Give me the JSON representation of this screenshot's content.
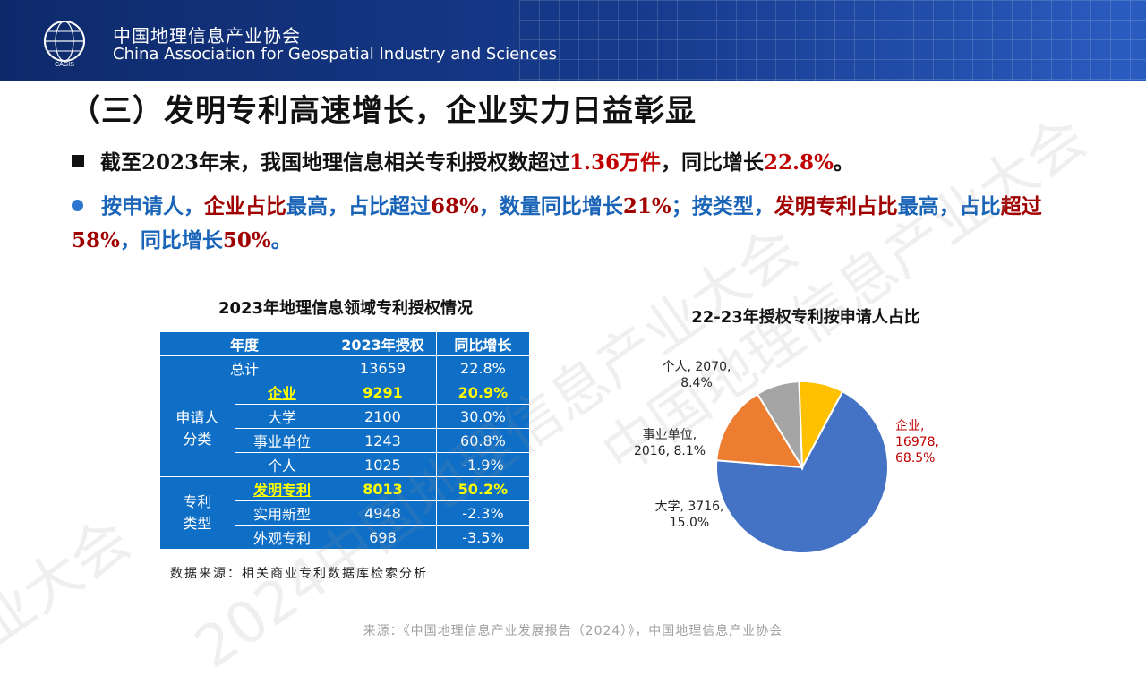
{
  "header": {
    "org_cn": "中国地理信息产业协会",
    "org_en": "China Association for Geospatial Industry and Sciences",
    "logo_text": "CAGIS"
  },
  "title": "（三）发明专利高速增长，企业实力日益彰显",
  "bullet1": {
    "p1": "截至2023年末，我国地理信息相关专利授权数超过",
    "v1": "1.36万件",
    "p2": "，同比增长",
    "v2": "22.8%",
    "p3": "。"
  },
  "bullet2": {
    "p1": "按申请人，",
    "h1": "企业占比",
    "p2": "最高，占比超过",
    "v1": "68%",
    "p3": "，数量同比增长",
    "v2": "21%",
    "p4": "；按类型，",
    "h2": "发明专利占比",
    "p5": "最高，占比",
    "h3": "超过",
    "v3": "58%",
    "p6": "，同比增长",
    "v4": "50%",
    "p7": "。"
  },
  "table": {
    "title": "2023年地理信息领域专利授权情况",
    "headers": [
      "年度",
      "2023年授权",
      "同比增长"
    ],
    "total": {
      "label": "总计",
      "value": "13659",
      "growth": "22.8%"
    },
    "group1": "申请人\n分类",
    "group2": "专利\n类型",
    "rows": [
      {
        "label": "企业",
        "value": "9291",
        "growth": "20.9%"
      },
      {
        "label": "大学",
        "value": "2100",
        "growth": "30.0%"
      },
      {
        "label": "事业单位",
        "value": "1243",
        "growth": "60.8%"
      },
      {
        "label": "个人",
        "value": "1025",
        "growth": "-1.9%"
      },
      {
        "label": "发明专利",
        "value": "8013",
        "growth": "50.2%"
      },
      {
        "label": "实用新型",
        "value": "4948",
        "growth": "-2.3%"
      },
      {
        "label": "外观专利",
        "value": "698",
        "growth": "-3.5%"
      }
    ],
    "source": "数据来源：相关商业专利数据库检索分析"
  },
  "chart_data": {
    "type": "pie",
    "title": "22-23年授权专利按申请人占比",
    "slices": [
      {
        "name": "企业",
        "value": 16978,
        "percent": "68.5%",
        "color": "#4472c4",
        "label_line1": "企业,",
        "label_line2": "16978,",
        "label_line3": "68.5%"
      },
      {
        "name": "大学",
        "value": 3716,
        "percent": "15.0%",
        "color": "#ed7d31",
        "label_line1": "大学, 3716,",
        "label_line2": "15.0%"
      },
      {
        "name": "事业单位",
        "value": 2016,
        "percent": "8.1%",
        "color": "#a5a5a5",
        "label_line1": "事业单位,",
        "label_line2": "2016, 8.1%"
      },
      {
        "name": "个人",
        "value": 2070,
        "percent": "8.4%",
        "color": "#ffc000",
        "label_line1": "个人, 2070,",
        "label_line2": "8.4%"
      }
    ]
  },
  "footer": "来源：《中国地理信息产业发展报告（2024）》，中国地理信息产业协会",
  "watermark": [
    "2024中国地理信息产业大会",
    "中国地理信息产业大会",
    "业大会"
  ]
}
